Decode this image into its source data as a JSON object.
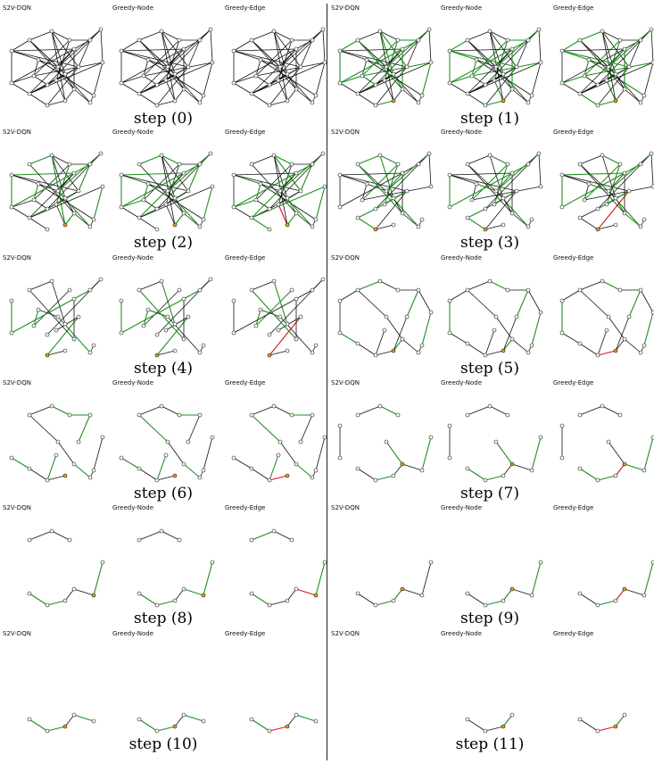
{
  "panel_titles": [
    "S2V-DQN",
    "Greedy-Node",
    "Greedy-Edge"
  ],
  "step_labels": [
    "step (0)",
    "step (1)",
    "step (2)",
    "step (3)",
    "step (4)",
    "step (5)",
    "step (6)",
    "step (7)",
    "step (8)",
    "step (9)",
    "step (10)",
    "step (11)"
  ],
  "colors": {
    "edge": "#111111",
    "covered_edge": "#1f8f1f",
    "selected_edge": "#e01010",
    "node_fill": "#ffffff",
    "selected_node_fill": "#e0a020"
  }
}
